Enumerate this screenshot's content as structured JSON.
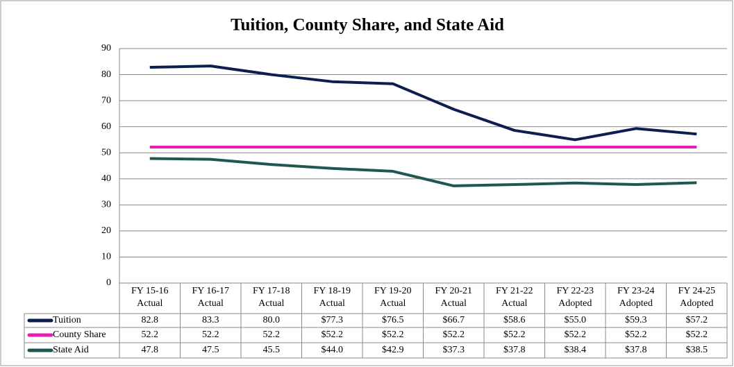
{
  "chart_data": {
    "type": "line",
    "title": "Tuition, County Share, and State Aid",
    "categories": [
      [
        "FY 15-16",
        "Actual"
      ],
      [
        "FY 16-17",
        "Actual"
      ],
      [
        "FY 17-18",
        "Actual"
      ],
      [
        "FY 18-19",
        "Actual"
      ],
      [
        "FY 19-20",
        "Actual"
      ],
      [
        "FY 20-21",
        "Actual"
      ],
      [
        "FY 21-22",
        "Actual"
      ],
      [
        "FY 22-23",
        "Adopted"
      ],
      [
        "FY 23-24",
        "Adopted"
      ],
      [
        "FY 24-25",
        "Adopted"
      ]
    ],
    "series": [
      {
        "name": "Tuition",
        "color": "#0d1f4f",
        "values": [
          82.8,
          83.3,
          80.0,
          77.3,
          76.5,
          66.7,
          58.6,
          55.0,
          59.3,
          57.2
        ],
        "value_labels": [
          "82.8",
          "83.3",
          "80.0",
          "$77.3",
          "$76.5",
          "$66.7",
          "$58.6",
          "$55.0",
          "$59.3",
          "$57.2"
        ]
      },
      {
        "name": "County Share",
        "color": "#e61fb4",
        "values": [
          52.2,
          52.2,
          52.2,
          52.2,
          52.2,
          52.2,
          52.2,
          52.2,
          52.2,
          52.2
        ],
        "value_labels": [
          "52.2",
          "52.2",
          "52.2",
          "$52.2",
          "$52.2",
          "$52.2",
          "$52.2",
          "$52.2",
          "$52.2",
          "$52.2"
        ]
      },
      {
        "name": "State Aid",
        "color": "#1f5751",
        "values": [
          47.8,
          47.5,
          45.5,
          44.0,
          42.9,
          37.3,
          37.8,
          38.4,
          37.8,
          38.5
        ],
        "value_labels": [
          "47.8",
          "47.5",
          "45.5",
          "$44.0",
          "$42.9",
          "$37.3",
          "$37.8",
          "$38.4",
          "$37.8",
          "$38.5"
        ]
      }
    ],
    "ylim": [
      0,
      90
    ],
    "yticks": [
      0,
      10,
      20,
      30,
      40,
      50,
      60,
      70,
      80,
      90
    ],
    "grid": true
  }
}
